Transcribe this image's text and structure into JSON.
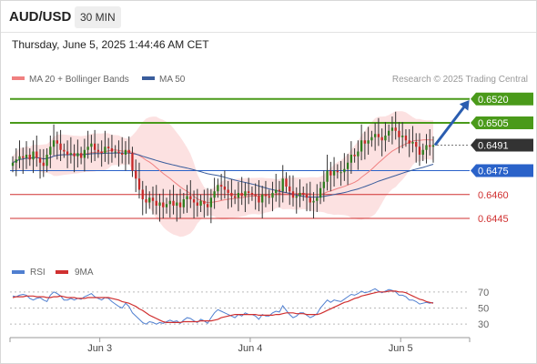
{
  "header": {
    "symbol": "AUD/USD",
    "interval": "30 MIN",
    "timestamp": "Thursday, June 5, 2025 1:44:46 AM CET"
  },
  "chart_data": [
    {
      "type": "candlestick",
      "title": "",
      "legend": [
        {
          "name": "MA 20 + Bollinger Bands",
          "color": "#f08080"
        },
        {
          "name": "MA 50",
          "color": "#3a5d9c"
        }
      ],
      "copyright": "Research © 2025 Trading Central",
      "x_ticks": [
        "Jun 3",
        "Jun 4",
        "Jun 5"
      ],
      "ylim": [
        0.6425,
        0.6525
      ],
      "grid": false,
      "levels": [
        {
          "value": 0.652,
          "label": "0.6520",
          "color": "#4a9a1a",
          "style": "box"
        },
        {
          "value": 0.6505,
          "label": "0.6505",
          "color": "#4a9a1a",
          "style": "box"
        },
        {
          "value": 0.6491,
          "label": "0.6491",
          "color": "#333333",
          "style": "box"
        },
        {
          "value": 0.6475,
          "label": "0.6475",
          "color": "#2a62c9",
          "style": "box"
        },
        {
          "value": 0.646,
          "label": "0.6460",
          "color": "#d03030",
          "style": "text"
        },
        {
          "value": 0.6445,
          "label": "0.6445",
          "color": "#d03030",
          "style": "text"
        }
      ],
      "current_price": 0.6491,
      "forecast_target": 0.652,
      "close": [
        0.648,
        0.6482,
        0.6484,
        0.6483,
        0.6485,
        0.6482,
        0.6487,
        0.6483,
        0.648,
        0.6478,
        0.6485,
        0.649,
        0.6494,
        0.6492,
        0.6488,
        0.6487,
        0.6485,
        0.6486,
        0.6484,
        0.6486,
        0.6483,
        0.6488,
        0.649,
        0.6492,
        0.6488,
        0.6487,
        0.6486,
        0.649,
        0.6489,
        0.6487,
        0.6487,
        0.6486,
        0.6485,
        0.6488,
        0.6486,
        0.6475,
        0.647,
        0.6463,
        0.6457,
        0.6455,
        0.6458,
        0.6456,
        0.6453,
        0.6455,
        0.6452,
        0.6454,
        0.6456,
        0.6453,
        0.6455,
        0.6452,
        0.6457,
        0.6459,
        0.6457,
        0.6455,
        0.6453,
        0.6456,
        0.6454,
        0.6452,
        0.6458,
        0.6462,
        0.6466,
        0.6465,
        0.6463,
        0.6461,
        0.6459,
        0.6458,
        0.6461,
        0.6459,
        0.6462,
        0.6461,
        0.646,
        0.6459,
        0.6455,
        0.646,
        0.6459,
        0.6458,
        0.6461,
        0.6463,
        0.6462,
        0.647,
        0.6465,
        0.6462,
        0.6458,
        0.6459,
        0.6461,
        0.646,
        0.6458,
        0.6455,
        0.6456,
        0.6458,
        0.6464,
        0.6468,
        0.6475,
        0.6472,
        0.6475,
        0.6474,
        0.6474,
        0.6476,
        0.648,
        0.6485,
        0.6484,
        0.6487,
        0.6494,
        0.6492,
        0.6494,
        0.6496,
        0.6498,
        0.6496,
        0.6494,
        0.6497,
        0.65,
        0.6502,
        0.65,
        0.6496,
        0.6497,
        0.6494,
        0.6492,
        0.6493,
        0.649,
        0.6485,
        0.6488,
        0.6491,
        0.649,
        0.6491
      ]
    },
    {
      "type": "line",
      "title": "",
      "legend": [
        {
          "name": "RSI",
          "color": "#4f7fd0"
        },
        {
          "name": "9MA",
          "color": "#d03030"
        }
      ],
      "ylim": [
        20,
        80
      ],
      "levels": [
        70,
        50,
        30
      ],
      "x_ticks": [
        "Jun 3",
        "Jun 4",
        "Jun 5"
      ],
      "series": [
        {
          "name": "RSI",
          "color": "#4f7fd0",
          "values": [
            65,
            64,
            66,
            67,
            66,
            62,
            60,
            62,
            63,
            60,
            58,
            66,
            70,
            68,
            65,
            60,
            60,
            62,
            60,
            62,
            61,
            64,
            66,
            68,
            64,
            62,
            60,
            63,
            62,
            58,
            55,
            52,
            50,
            56,
            52,
            44,
            40,
            36,
            32,
            30,
            33,
            32,
            30,
            32,
            31,
            33,
            35,
            33,
            34,
            31,
            35,
            38,
            37,
            34,
            32,
            36,
            34,
            31,
            38,
            44,
            48,
            46,
            44,
            42,
            40,
            38,
            42,
            40,
            44,
            42,
            42,
            40,
            36,
            42,
            40,
            40,
            44,
            46,
            45,
            53,
            47,
            42,
            38,
            40,
            44,
            44,
            41,
            38,
            40,
            43,
            50,
            55,
            60,
            57,
            60,
            59,
            58,
            61,
            64,
            67,
            66,
            68,
            71,
            69,
            70,
            72,
            74,
            71,
            69,
            71,
            73,
            72,
            70,
            66,
            66,
            64,
            60,
            60,
            58,
            55,
            56,
            57,
            56,
            57
          ]
        },
        {
          "name": "9MA",
          "color": "#d03030",
          "values": [
            63,
            64,
            64,
            64,
            65,
            65,
            65,
            64,
            64,
            64,
            63,
            63,
            64,
            64,
            65,
            64,
            63,
            63,
            63,
            62,
            62,
            62,
            63,
            63,
            63,
            63,
            63,
            63,
            63,
            62,
            61,
            60,
            58,
            57,
            56,
            54,
            52,
            49,
            47,
            44,
            41,
            39,
            37,
            35,
            33,
            32,
            32,
            32,
            32,
            32,
            33,
            33,
            33,
            33,
            33,
            34,
            34,
            34,
            34,
            35,
            36,
            38,
            39,
            40,
            41,
            42,
            42,
            42,
            42,
            42,
            42,
            42,
            41,
            41,
            41,
            41,
            41,
            42,
            42,
            43,
            44,
            44,
            44,
            43,
            43,
            43,
            42,
            42,
            42,
            42,
            43,
            45,
            47,
            49,
            51,
            53,
            55,
            57,
            58,
            60,
            62,
            63,
            65,
            66,
            67,
            68,
            69,
            70,
            70,
            70,
            71,
            71,
            71,
            70,
            70,
            69,
            67,
            65,
            63,
            61,
            60,
            58,
            57,
            56
          ]
        }
      ]
    }
  ]
}
